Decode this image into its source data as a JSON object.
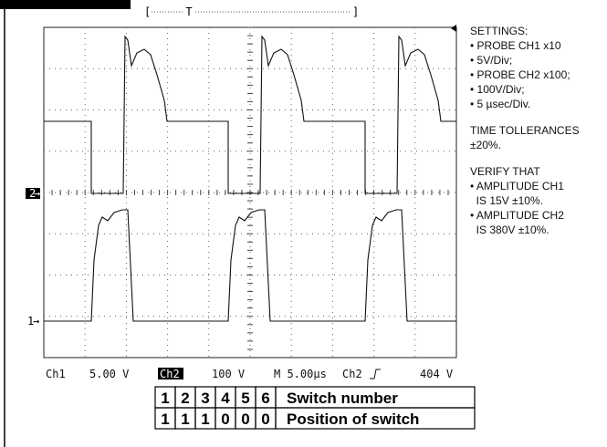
{
  "scope": {
    "time_bracket": "T",
    "ch2_marker": "2",
    "ch1_marker": "1",
    "status": [
      "Ch1",
      "5.00 V",
      "Ch2",
      "100 V",
      "M 5.00µs",
      "Ch2",
      "404 V"
    ]
  },
  "notes": [
    "SETTINGS:",
    "• PROBE CH1 x10",
    "• 5V/Div;",
    "• PROBE CH2 x100;",
    "• 100V/Div;",
    "• 5 µsec/Div.",
    "TIME TOLLERANCES",
    "±20%.",
    "VERIFY THAT",
    "• AMPLITUDE CH1",
    "  IS 15V ±10%.",
    "• AMPLITUDE CH2",
    "  IS 380V ±10%."
  ],
  "table": {
    "rows": [
      [
        "1",
        "2",
        "3",
        "4",
        "5",
        "6",
        "Switch number"
      ],
      [
        "1",
        "1",
        "1",
        "0",
        "0",
        "0",
        "Position of switch"
      ]
    ]
  }
}
